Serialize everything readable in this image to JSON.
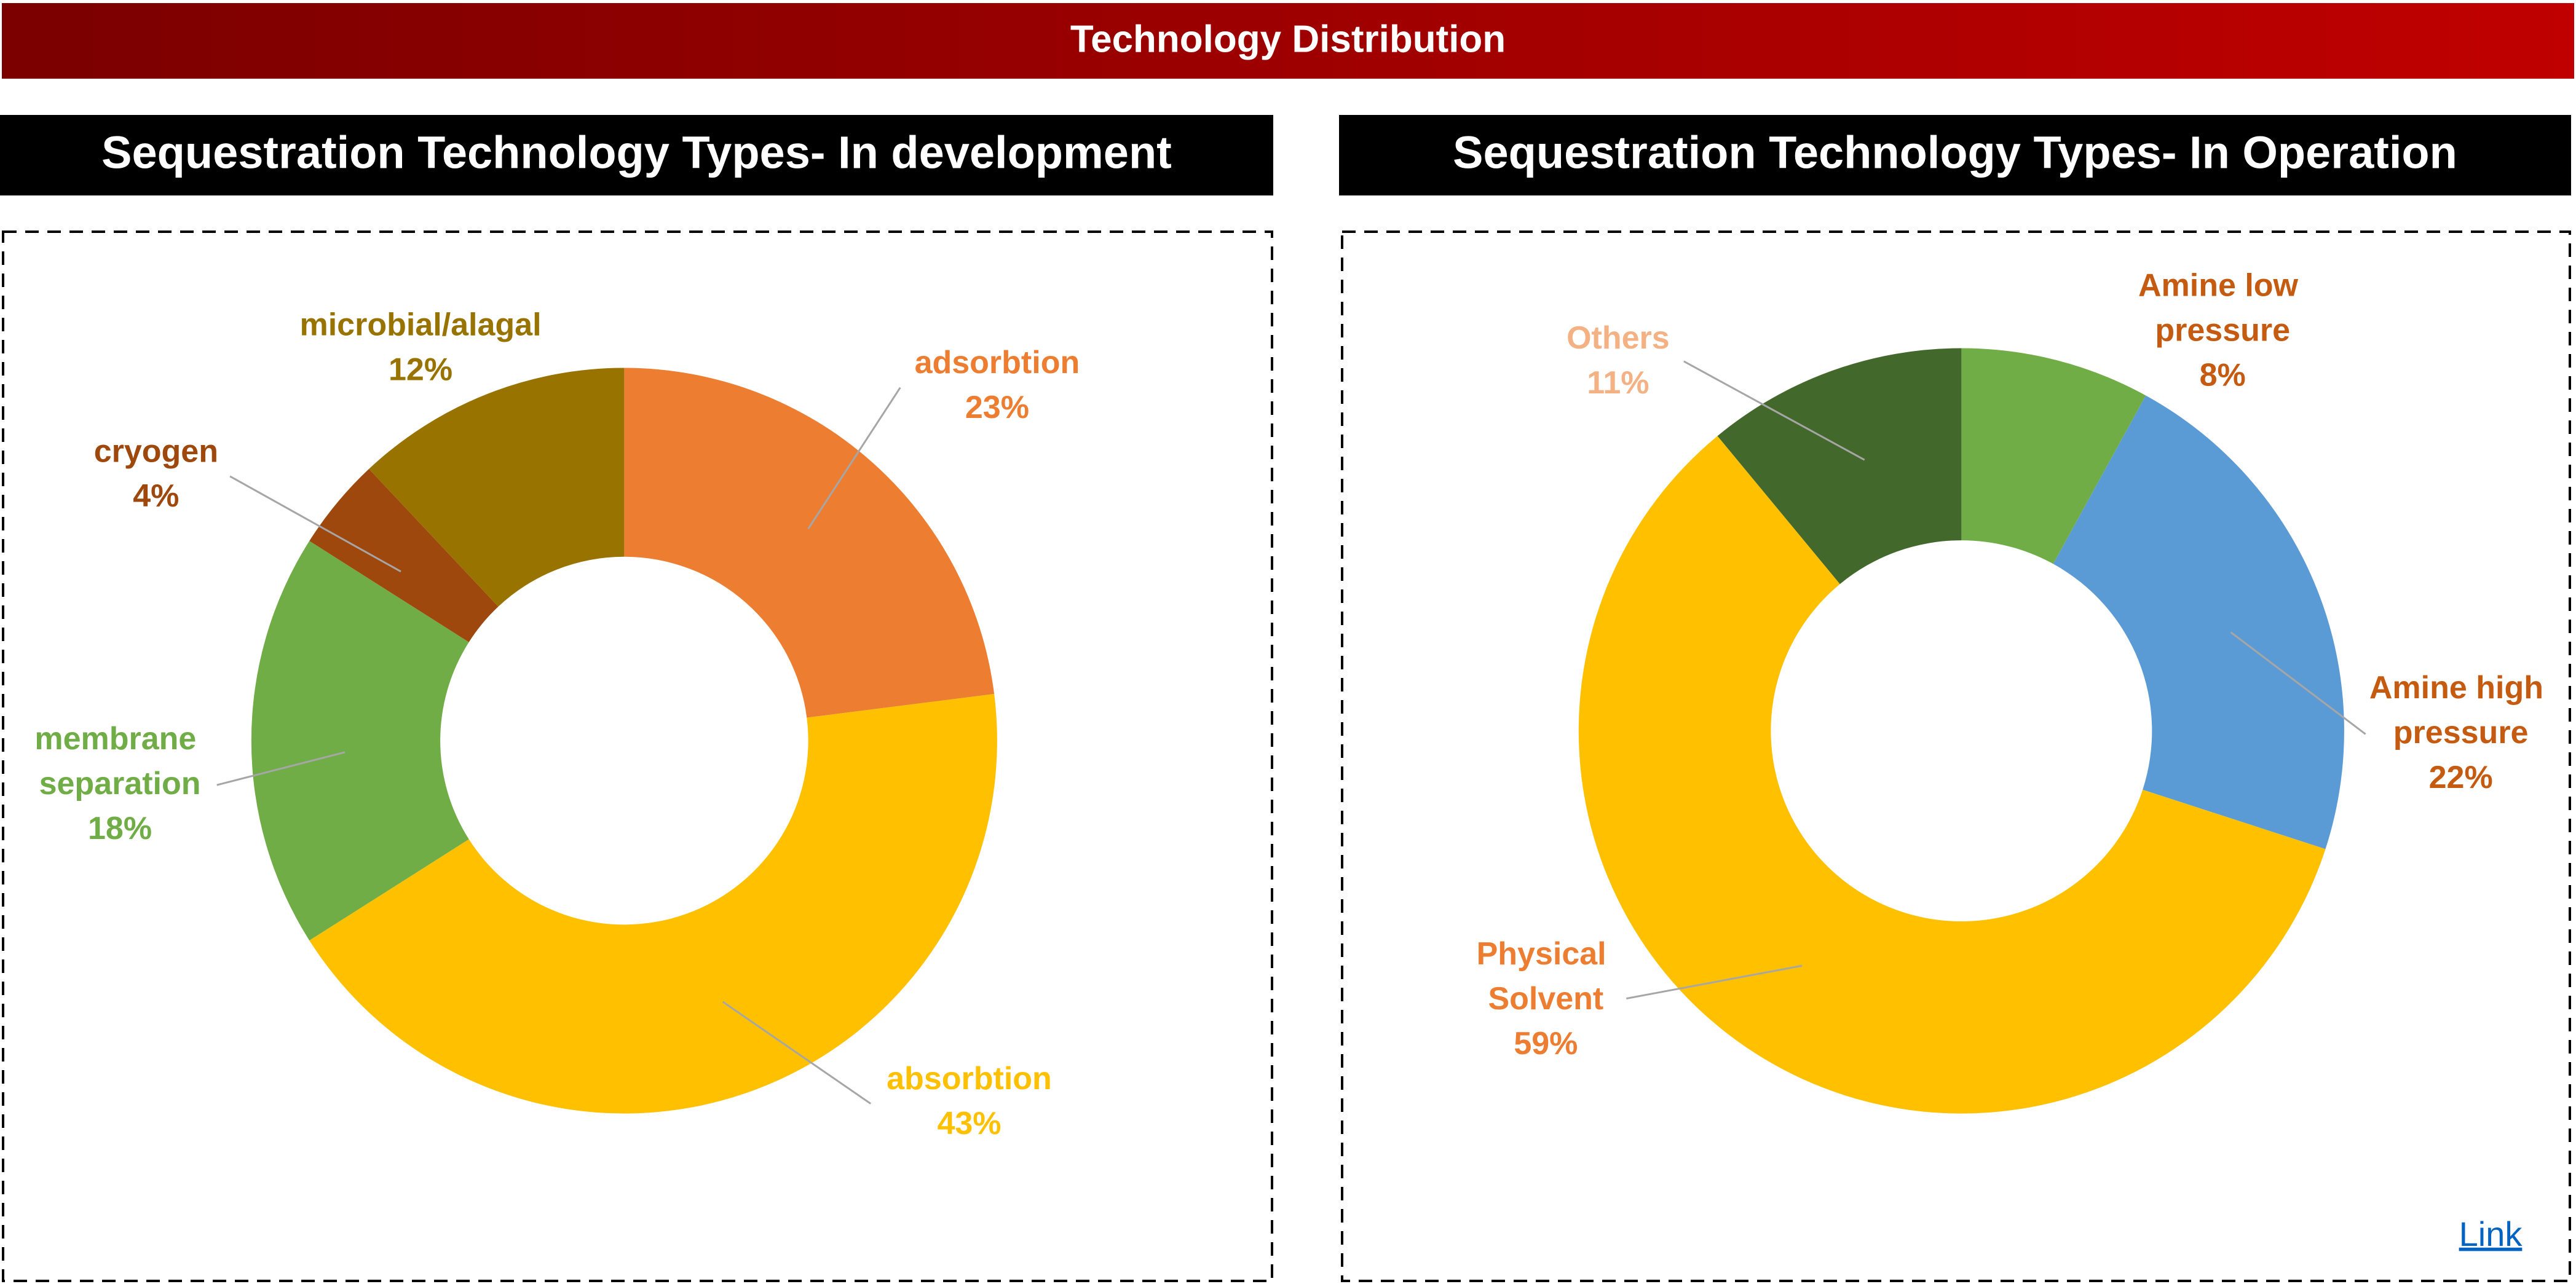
{
  "title": "Technology Distribution",
  "link": "Link",
  "chart_data": [
    {
      "type": "pie",
      "donut": true,
      "title": "Sequestration Technology Types- In development",
      "categories": [
        "adsorbtion",
        "absorbtion",
        "membrane separation",
        "cryogen",
        "microbial/alagal"
      ],
      "values": [
        23,
        43,
        18,
        4,
        12
      ],
      "value_labels": [
        "23%",
        "43%",
        "18%",
        "4%",
        "12%"
      ],
      "colors": [
        "#ed7d31",
        "#ffc000",
        "#70ad47",
        "#9e480e",
        "#997300"
      ],
      "label_colors": [
        "#ed7d31",
        "#ffc000",
        "#70ad47",
        "#9e480e",
        "#997300"
      ]
    },
    {
      "type": "pie",
      "donut": true,
      "title": "Sequestration Technology Types- In Operation",
      "categories": [
        "Amine low pressure",
        "Amine high pressure",
        "Physical Solvent",
        "Others"
      ],
      "values": [
        8,
        22,
        59,
        11
      ],
      "value_labels": [
        "8%",
        "22%",
        "59%",
        "11%"
      ],
      "colors": [
        "#70ad47",
        "#5b9bd5",
        "#ffc000",
        "#43682b"
      ],
      "label_colors": [
        "#c55a11",
        "#c55a11",
        "#ed7d31",
        "#f4b183"
      ]
    }
  ]
}
